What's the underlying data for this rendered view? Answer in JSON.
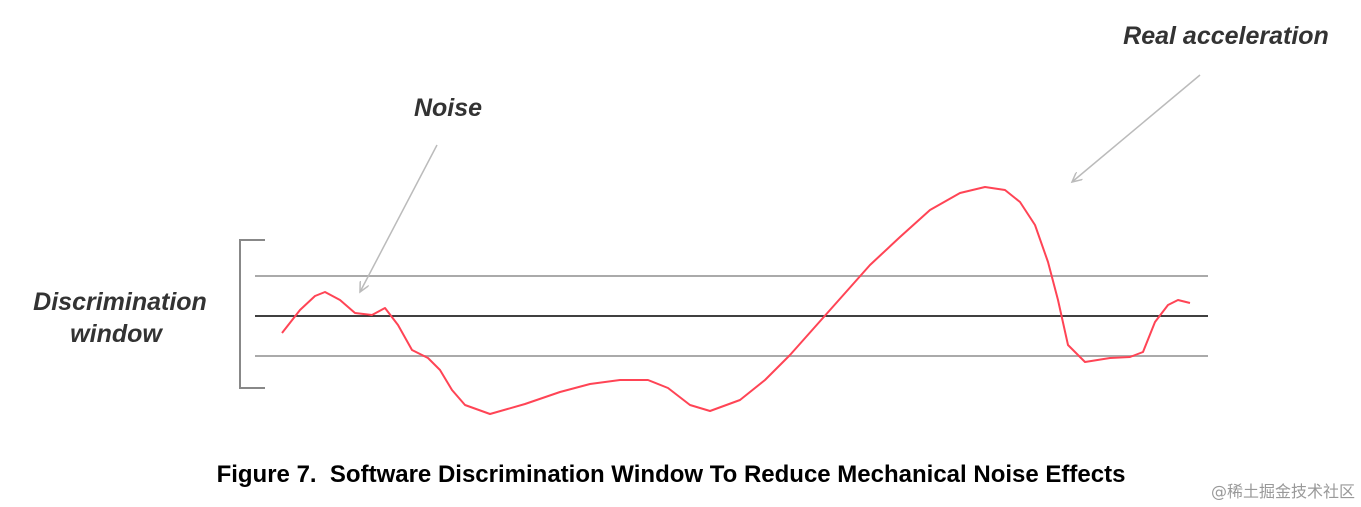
{
  "labels": {
    "real_acceleration": "Real acceleration",
    "noise": "Noise",
    "discrimination_window": [
      "Discrimination",
      "window"
    ]
  },
  "caption": "Figure 7.  Software Discrimination Window To Reduce Mechanical Noise Effects",
  "watermark": "@稀土掘金技术社区"
}
